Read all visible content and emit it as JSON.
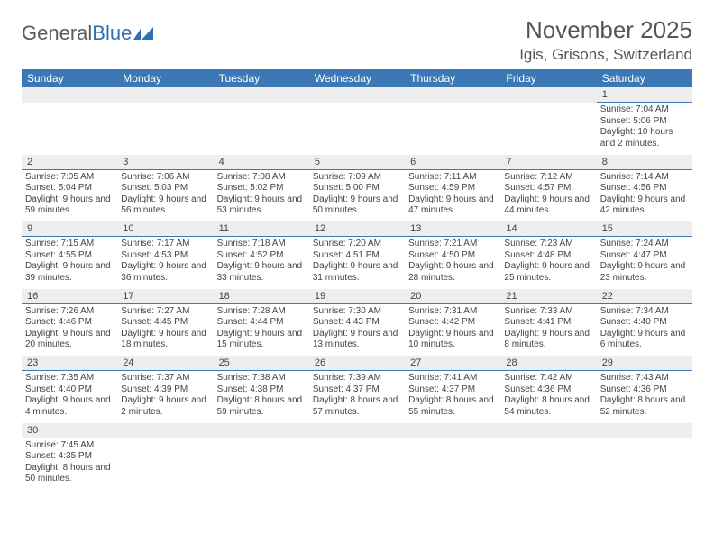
{
  "logo": {
    "text1": "General",
    "text2": "Blue"
  },
  "title": {
    "month": "November 2025",
    "location": "Igis, Grisons, Switzerland"
  },
  "headers": [
    "Sunday",
    "Monday",
    "Tuesday",
    "Wednesday",
    "Thursday",
    "Friday",
    "Saturday"
  ],
  "colors": {
    "header_bg": "#3b78b5",
    "header_text": "#ffffff",
    "daynum_bg": "#eeeeee",
    "border": "#3b78b5",
    "text": "#444444"
  },
  "weeks": [
    [
      {
        "empty": true
      },
      {
        "empty": true
      },
      {
        "empty": true
      },
      {
        "empty": true
      },
      {
        "empty": true
      },
      {
        "empty": true
      },
      {
        "day": "1",
        "sunrise": "Sunrise: 7:04 AM",
        "sunset": "Sunset: 5:06 PM",
        "daylight": "Daylight: 10 hours and 2 minutes."
      }
    ],
    [
      {
        "day": "2",
        "sunrise": "Sunrise: 7:05 AM",
        "sunset": "Sunset: 5:04 PM",
        "daylight": "Daylight: 9 hours and 59 minutes."
      },
      {
        "day": "3",
        "sunrise": "Sunrise: 7:06 AM",
        "sunset": "Sunset: 5:03 PM",
        "daylight": "Daylight: 9 hours and 56 minutes."
      },
      {
        "day": "4",
        "sunrise": "Sunrise: 7:08 AM",
        "sunset": "Sunset: 5:02 PM",
        "daylight": "Daylight: 9 hours and 53 minutes."
      },
      {
        "day": "5",
        "sunrise": "Sunrise: 7:09 AM",
        "sunset": "Sunset: 5:00 PM",
        "daylight": "Daylight: 9 hours and 50 minutes."
      },
      {
        "day": "6",
        "sunrise": "Sunrise: 7:11 AM",
        "sunset": "Sunset: 4:59 PM",
        "daylight": "Daylight: 9 hours and 47 minutes."
      },
      {
        "day": "7",
        "sunrise": "Sunrise: 7:12 AM",
        "sunset": "Sunset: 4:57 PM",
        "daylight": "Daylight: 9 hours and 44 minutes."
      },
      {
        "day": "8",
        "sunrise": "Sunrise: 7:14 AM",
        "sunset": "Sunset: 4:56 PM",
        "daylight": "Daylight: 9 hours and 42 minutes."
      }
    ],
    [
      {
        "day": "9",
        "sunrise": "Sunrise: 7:15 AM",
        "sunset": "Sunset: 4:55 PM",
        "daylight": "Daylight: 9 hours and 39 minutes."
      },
      {
        "day": "10",
        "sunrise": "Sunrise: 7:17 AM",
        "sunset": "Sunset: 4:53 PM",
        "daylight": "Daylight: 9 hours and 36 minutes."
      },
      {
        "day": "11",
        "sunrise": "Sunrise: 7:18 AM",
        "sunset": "Sunset: 4:52 PM",
        "daylight": "Daylight: 9 hours and 33 minutes."
      },
      {
        "day": "12",
        "sunrise": "Sunrise: 7:20 AM",
        "sunset": "Sunset: 4:51 PM",
        "daylight": "Daylight: 9 hours and 31 minutes."
      },
      {
        "day": "13",
        "sunrise": "Sunrise: 7:21 AM",
        "sunset": "Sunset: 4:50 PM",
        "daylight": "Daylight: 9 hours and 28 minutes."
      },
      {
        "day": "14",
        "sunrise": "Sunrise: 7:23 AM",
        "sunset": "Sunset: 4:48 PM",
        "daylight": "Daylight: 9 hours and 25 minutes."
      },
      {
        "day": "15",
        "sunrise": "Sunrise: 7:24 AM",
        "sunset": "Sunset: 4:47 PM",
        "daylight": "Daylight: 9 hours and 23 minutes."
      }
    ],
    [
      {
        "day": "16",
        "sunrise": "Sunrise: 7:26 AM",
        "sunset": "Sunset: 4:46 PM",
        "daylight": "Daylight: 9 hours and 20 minutes."
      },
      {
        "day": "17",
        "sunrise": "Sunrise: 7:27 AM",
        "sunset": "Sunset: 4:45 PM",
        "daylight": "Daylight: 9 hours and 18 minutes."
      },
      {
        "day": "18",
        "sunrise": "Sunrise: 7:28 AM",
        "sunset": "Sunset: 4:44 PM",
        "daylight": "Daylight: 9 hours and 15 minutes."
      },
      {
        "day": "19",
        "sunrise": "Sunrise: 7:30 AM",
        "sunset": "Sunset: 4:43 PM",
        "daylight": "Daylight: 9 hours and 13 minutes."
      },
      {
        "day": "20",
        "sunrise": "Sunrise: 7:31 AM",
        "sunset": "Sunset: 4:42 PM",
        "daylight": "Daylight: 9 hours and 10 minutes."
      },
      {
        "day": "21",
        "sunrise": "Sunrise: 7:33 AM",
        "sunset": "Sunset: 4:41 PM",
        "daylight": "Daylight: 9 hours and 8 minutes."
      },
      {
        "day": "22",
        "sunrise": "Sunrise: 7:34 AM",
        "sunset": "Sunset: 4:40 PM",
        "daylight": "Daylight: 9 hours and 6 minutes."
      }
    ],
    [
      {
        "day": "23",
        "sunrise": "Sunrise: 7:35 AM",
        "sunset": "Sunset: 4:40 PM",
        "daylight": "Daylight: 9 hours and 4 minutes."
      },
      {
        "day": "24",
        "sunrise": "Sunrise: 7:37 AM",
        "sunset": "Sunset: 4:39 PM",
        "daylight": "Daylight: 9 hours and 2 minutes."
      },
      {
        "day": "25",
        "sunrise": "Sunrise: 7:38 AM",
        "sunset": "Sunset: 4:38 PM",
        "daylight": "Daylight: 8 hours and 59 minutes."
      },
      {
        "day": "26",
        "sunrise": "Sunrise: 7:39 AM",
        "sunset": "Sunset: 4:37 PM",
        "daylight": "Daylight: 8 hours and 57 minutes."
      },
      {
        "day": "27",
        "sunrise": "Sunrise: 7:41 AM",
        "sunset": "Sunset: 4:37 PM",
        "daylight": "Daylight: 8 hours and 55 minutes."
      },
      {
        "day": "28",
        "sunrise": "Sunrise: 7:42 AM",
        "sunset": "Sunset: 4:36 PM",
        "daylight": "Daylight: 8 hours and 54 minutes."
      },
      {
        "day": "29",
        "sunrise": "Sunrise: 7:43 AM",
        "sunset": "Sunset: 4:36 PM",
        "daylight": "Daylight: 8 hours and 52 minutes."
      }
    ],
    [
      {
        "day": "30",
        "sunrise": "Sunrise: 7:45 AM",
        "sunset": "Sunset: 4:35 PM",
        "daylight": "Daylight: 8 hours and 50 minutes."
      },
      {
        "empty": true
      },
      {
        "empty": true
      },
      {
        "empty": true
      },
      {
        "empty": true
      },
      {
        "empty": true
      },
      {
        "empty": true
      }
    ]
  ]
}
